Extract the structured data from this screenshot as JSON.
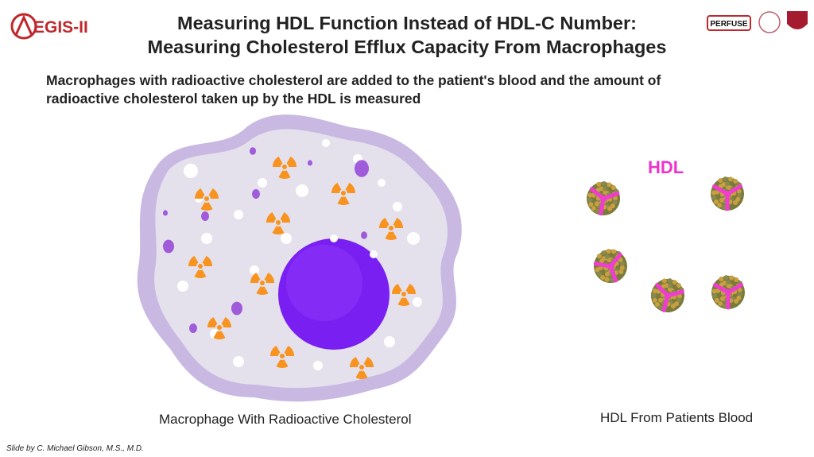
{
  "logo": {
    "text": "EGIS-II",
    "badge": "PERFUSE"
  },
  "title": [
    "Measuring HDL Function Instead of HDL-C Number:",
    "Measuring Cholesterol Efflux Capacity From Macrophages"
  ],
  "subtitle": [
    "Macrophages with radioactive cholesterol are added to the patient's blood and the amount of",
    "radioactive cholesterol taken up by the HDL is measured"
  ],
  "hdl_label": "HDL",
  "macrophage_label": "Macrophage With Radioactive Cholesterol",
  "hdl_caption": "HDL From Patients Blood",
  "credit": "Slide by C. Michael Gibson, M.S., M.D."
}
